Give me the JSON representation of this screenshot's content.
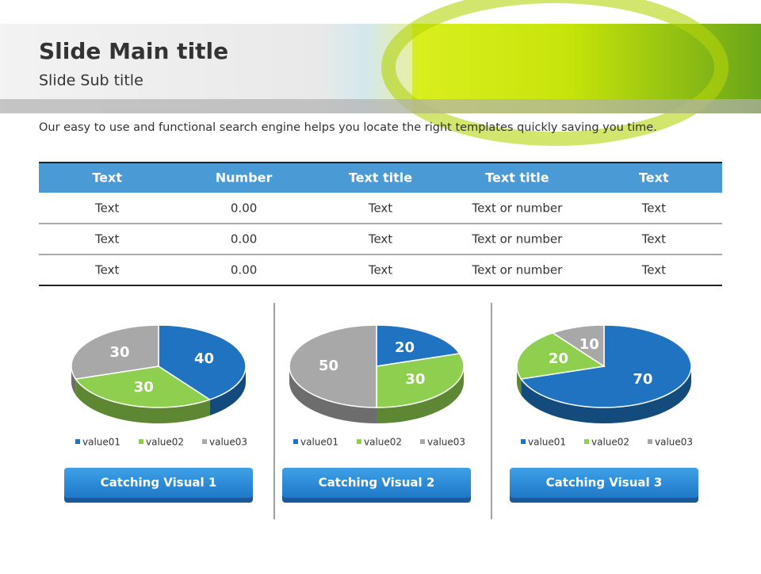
{
  "header": {
    "title": "Slide Main title",
    "subtitle": "Slide Sub title"
  },
  "description": "Our easy to use and functional search engine helps you locate the right templates quickly saving you time.",
  "table": {
    "columns": [
      "Text",
      "Number",
      "Text title",
      "Text title",
      "Text"
    ],
    "rows": [
      [
        "Text",
        "0.00",
        "Text",
        "Text or number",
        "Text"
      ],
      [
        "Text",
        "0.00",
        "Text",
        "Text or number",
        "Text"
      ],
      [
        "Text",
        "0.00",
        "Text",
        "Text or number",
        "Text"
      ]
    ]
  },
  "chart_data": [
    {
      "type": "pie",
      "categories": [
        "value01",
        "value02",
        "value03"
      ],
      "values": [
        40,
        30,
        30
      ],
      "colors": [
        "#1f73c0",
        "#8fcf4f",
        "#a8a8a8"
      ],
      "caption": "Catching Visual 1"
    },
    {
      "type": "pie",
      "categories": [
        "value01",
        "value02",
        "value03"
      ],
      "values": [
        20,
        30,
        50
      ],
      "colors": [
        "#1f73c0",
        "#8fcf4f",
        "#a8a8a8"
      ],
      "caption": "Catching Visual 2"
    },
    {
      "type": "pie",
      "categories": [
        "value01",
        "value02",
        "value03"
      ],
      "values": [
        70,
        20,
        10
      ],
      "colors": [
        "#1f73c0",
        "#8fcf4f",
        "#a8a8a8"
      ],
      "caption": "Catching Visual 3"
    }
  ]
}
